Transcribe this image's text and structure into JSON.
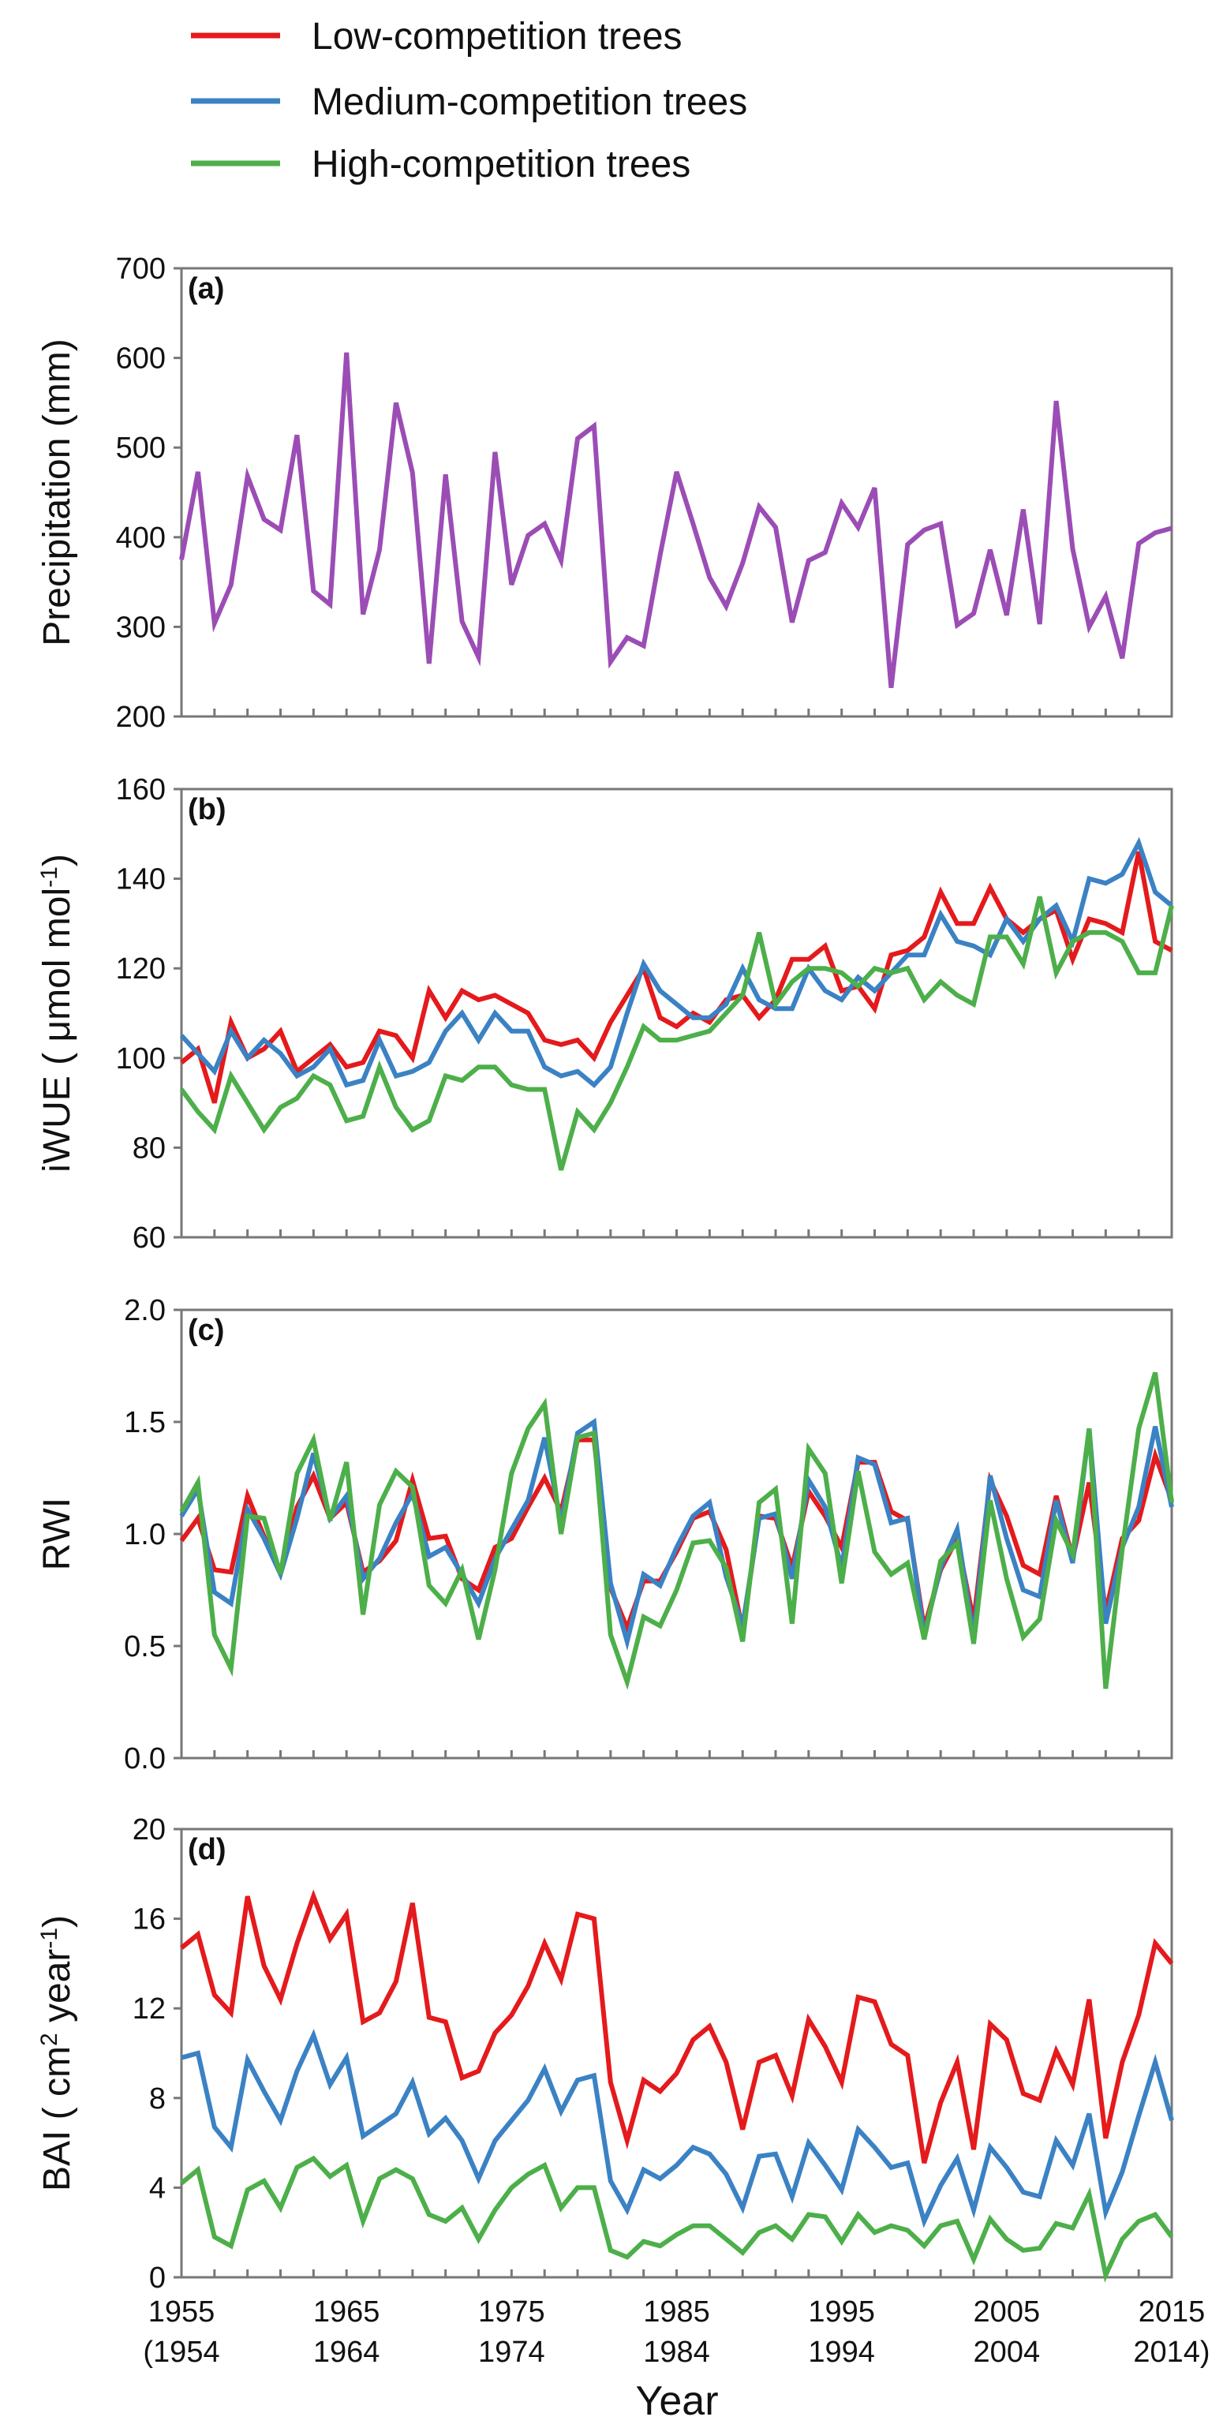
{
  "legend": [
    {
      "label": "Low-competition trees",
      "color": "#e41a1c"
    },
    {
      "label": "Medium-competition trees",
      "color": "#3b82c4"
    },
    {
      "label": "High-competition trees",
      "color": "#4daf4a"
    }
  ],
  "xaxis": {
    "title": "Year",
    "top_labels": [
      "1955",
      "1965",
      "1975",
      "1985",
      "1995",
      "2005",
      "2015"
    ],
    "bottom_labels": [
      "(1954",
      "1964",
      "1974",
      "1984",
      "1994",
      "2004",
      "2014)"
    ],
    "range": [
      1955,
      2015
    ]
  },
  "chart_data": [
    {
      "type": "line",
      "panel": "(a)",
      "ylabel": "Precipitation (mm)",
      "ylim": [
        200,
        700
      ],
      "yticks": [
        "200",
        "300",
        "400",
        "500",
        "600",
        "700"
      ],
      "x": [
        1955,
        1956,
        1957,
        1958,
        1959,
        1960,
        1961,
        1962,
        1963,
        1964,
        1965,
        1966,
        1967,
        1968,
        1969,
        1970,
        1971,
        1972,
        1973,
        1974,
        1975,
        1976,
        1977,
        1978,
        1979,
        1980,
        1981,
        1982,
        1983,
        1984,
        1985,
        1986,
        1987,
        1988,
        1989,
        1990,
        1991,
        1992,
        1993,
        1994,
        1995,
        1996,
        1997,
        1998,
        1999,
        2000,
        2001,
        2002,
        2003,
        2004,
        2005,
        2006,
        2007,
        2008,
        2009,
        2010,
        2011,
        2012,
        2013,
        2014,
        2015
      ],
      "series": [
        {
          "color": "#9b4db5",
          "values": [
            375,
            473,
            304,
            347,
            468,
            420,
            408,
            514,
            340,
            325,
            606,
            314,
            386,
            550,
            472,
            259,
            470,
            306,
            266,
            495,
            347,
            402,
            415,
            374,
            510,
            524,
            261,
            288,
            279,
            380,
            473,
            415,
            355,
            323,
            371,
            434,
            411,
            305,
            374,
            383,
            438,
            411,
            455,
            232,
            392,
            408,
            415,
            302,
            315,
            386,
            313,
            431,
            303,
            552,
            387,
            300,
            334,
            265,
            393,
            405,
            410
          ]
        }
      ]
    },
    {
      "type": "line",
      "panel": "(b)",
      "ylabel": "iWUE ( μmol mol",
      "ylabel_sup": "-1",
      "ylabel_end": ")",
      "ylim": [
        60,
        160
      ],
      "yticks": [
        "60",
        "80",
        "100",
        "120",
        "140",
        "160"
      ],
      "x": [
        1955,
        1956,
        1957,
        1958,
        1959,
        1960,
        1961,
        1962,
        1963,
        1964,
        1965,
        1966,
        1967,
        1968,
        1969,
        1970,
        1971,
        1972,
        1973,
        1974,
        1975,
        1976,
        1977,
        1978,
        1979,
        1980,
        1981,
        1982,
        1983,
        1984,
        1985,
        1986,
        1987,
        1988,
        1989,
        1990,
        1991,
        1992,
        1993,
        1994,
        1995,
        1996,
        1997,
        1998,
        1999,
        2000,
        2001,
        2002,
        2003,
        2004,
        2005,
        2006,
        2007,
        2008,
        2009,
        2010,
        2011,
        2012,
        2013,
        2014,
        2015
      ],
      "series": [
        {
          "name": "Low-competition trees",
          "color": "#e41a1c",
          "values": [
            99,
            102,
            90,
            108,
            100,
            102,
            106,
            97,
            100,
            103,
            98,
            99,
            106,
            105,
            100,
            115,
            109,
            115,
            113,
            114,
            112,
            110,
            104,
            103,
            104,
            100,
            108,
            114,
            120,
            109,
            107,
            110,
            108,
            113,
            114,
            109,
            113,
            122,
            122,
            125,
            115,
            116,
            111,
            123,
            124,
            127,
            137,
            130,
            130,
            138,
            131,
            128,
            131,
            133,
            122,
            131,
            130,
            128,
            146,
            126,
            124
          ]
        },
        {
          "name": "Medium-competition trees",
          "color": "#3b82c4",
          "values": [
            105,
            101,
            97,
            106,
            100,
            104,
            101,
            96,
            98,
            102,
            94,
            95,
            104,
            96,
            97,
            99,
            106,
            110,
            104,
            110,
            106,
            106,
            98,
            96,
            97,
            94,
            98,
            110,
            121,
            115,
            112,
            109,
            109,
            112,
            120,
            113,
            111,
            111,
            120,
            115,
            113,
            118,
            115,
            119,
            123,
            123,
            132,
            126,
            125,
            123,
            131,
            126,
            131,
            134,
            126,
            140,
            139,
            141,
            148,
            137,
            134
          ]
        },
        {
          "name": "High-competition trees",
          "color": "#4daf4a",
          "values": [
            93,
            88,
            84,
            96,
            90,
            84,
            89,
            91,
            96,
            94,
            86,
            87,
            98,
            89,
            84,
            86,
            96,
            95,
            98,
            98,
            94,
            93,
            93,
            75,
            88,
            84,
            90,
            98,
            107,
            104,
            104,
            105,
            106,
            110,
            114,
            128,
            112,
            117,
            120,
            120,
            119,
            116,
            120,
            119,
            120,
            113,
            117,
            114,
            112,
            127,
            127,
            121,
            136,
            119,
            126,
            128,
            128,
            126,
            119,
            119,
            134
          ]
        }
      ]
    },
    {
      "type": "line",
      "panel": "(c)",
      "ylabel": "RWI",
      "ylim": [
        0.0,
        2.0
      ],
      "yticks": [
        "0.0",
        "0.5",
        "1.0",
        "1.5",
        "2.0"
      ],
      "x": [
        1955,
        1956,
        1957,
        1958,
        1959,
        1960,
        1961,
        1962,
        1963,
        1964,
        1965,
        1966,
        1967,
        1968,
        1969,
        1970,
        1971,
        1972,
        1973,
        1974,
        1975,
        1976,
        1977,
        1978,
        1979,
        1980,
        1981,
        1982,
        1983,
        1984,
        1985,
        1986,
        1987,
        1988,
        1989,
        1990,
        1991,
        1992,
        1993,
        1994,
        1995,
        1996,
        1997,
        1998,
        1999,
        2000,
        2001,
        2002,
        2003,
        2004,
        2005,
        2006,
        2007,
        2008,
        2009,
        2010,
        2011,
        2012,
        2013,
        2014,
        2015
      ],
      "series": [
        {
          "name": "Low-competition trees",
          "color": "#e41a1c",
          "values": [
            0.97,
            1.07,
            0.84,
            0.83,
            1.17,
            0.99,
            0.83,
            1.12,
            1.26,
            1.07,
            1.14,
            0.83,
            0.88,
            0.97,
            1.24,
            0.98,
            0.99,
            0.8,
            0.75,
            0.94,
            0.98,
            1.12,
            1.25,
            1.1,
            1.42,
            1.42,
            0.76,
            0.58,
            0.79,
            0.79,
            0.92,
            1.07,
            1.1,
            0.93,
            0.57,
            1.08,
            1.07,
            0.85,
            1.19,
            1.08,
            0.94,
            1.32,
            1.32,
            1.1,
            1.06,
            0.58,
            0.84,
            0.98,
            0.61,
            1.24,
            1.08,
            0.86,
            0.82,
            1.17,
            0.89,
            1.23,
            0.65,
            0.98,
            1.06,
            1.35,
            1.15
          ]
        },
        {
          "name": "Medium-competition trees",
          "color": "#3b82c4",
          "values": [
            1.08,
            1.2,
            0.74,
            0.69,
            1.11,
            0.98,
            0.82,
            1.07,
            1.36,
            1.07,
            1.17,
            0.8,
            0.89,
            1.05,
            1.18,
            0.9,
            0.94,
            0.82,
            0.69,
            0.89,
            1.02,
            1.15,
            1.43,
            1.05,
            1.45,
            1.5,
            0.78,
            0.52,
            0.82,
            0.77,
            0.94,
            1.08,
            1.14,
            0.81,
            0.59,
            1.07,
            1.09,
            0.8,
            1.24,
            1.12,
            0.85,
            1.34,
            1.31,
            1.05,
            1.07,
            0.55,
            0.85,
            1.02,
            0.54,
            1.26,
            0.98,
            0.75,
            0.72,
            1.15,
            0.87,
            1.47,
            0.6,
            0.94,
            1.12,
            1.48,
            1.12
          ]
        },
        {
          "name": "High-competition trees",
          "color": "#4daf4a",
          "values": [
            1.1,
            1.23,
            0.55,
            0.4,
            1.08,
            1.07,
            0.82,
            1.27,
            1.42,
            1.06,
            1.32,
            0.64,
            1.13,
            1.28,
            1.21,
            0.77,
            0.69,
            0.84,
            0.53,
            0.84,
            1.27,
            1.47,
            1.58,
            1.0,
            1.43,
            1.45,
            0.55,
            0.34,
            0.63,
            0.59,
            0.75,
            0.96,
            0.97,
            0.85,
            0.52,
            1.14,
            1.2,
            0.6,
            1.38,
            1.27,
            0.78,
            1.28,
            0.92,
            0.82,
            0.87,
            0.53,
            0.88,
            0.96,
            0.51,
            1.15,
            0.8,
            0.54,
            0.62,
            1.06,
            0.91,
            1.47,
            0.31,
            0.93,
            1.47,
            1.72,
            1.14
          ]
        }
      ]
    },
    {
      "type": "line",
      "panel": "(d)",
      "ylabel": "BAI ( cm",
      "ylabel_sup1": "2",
      "ylabel_mid": " year",
      "ylabel_sup2": "-1",
      "ylabel_end": ")",
      "ylim": [
        0,
        20
      ],
      "yticks": [
        "0",
        "4",
        "8",
        "12",
        "16",
        "20"
      ],
      "x": [
        1955,
        1956,
        1957,
        1958,
        1959,
        1960,
        1961,
        1962,
        1963,
        1964,
        1965,
        1966,
        1967,
        1968,
        1969,
        1970,
        1971,
        1972,
        1973,
        1974,
        1975,
        1976,
        1977,
        1978,
        1979,
        1980,
        1981,
        1982,
        1983,
        1984,
        1985,
        1986,
        1987,
        1988,
        1989,
        1990,
        1991,
        1992,
        1993,
        1994,
        1995,
        1996,
        1997,
        1998,
        1999,
        2000,
        2001,
        2002,
        2003,
        2004,
        2005,
        2006,
        2007,
        2008,
        2009,
        2010,
        2011,
        2012,
        2013,
        2014,
        2015
      ],
      "series": [
        {
          "name": "Low-competition trees",
          "color": "#e41a1c",
          "values": [
            14.7,
            15.3,
            12.6,
            11.8,
            17.0,
            13.9,
            12.4,
            14.9,
            17.0,
            15.1,
            16.2,
            11.4,
            11.8,
            13.2,
            16.7,
            11.6,
            11.4,
            8.9,
            9.2,
            10.9,
            11.7,
            13.0,
            14.9,
            13.3,
            16.2,
            16.0,
            8.7,
            6.1,
            8.8,
            8.3,
            9.1,
            10.6,
            11.2,
            9.6,
            6.6,
            9.6,
            9.9,
            8.1,
            11.5,
            10.3,
            8.7,
            12.5,
            12.3,
            10.4,
            9.9,
            5.1,
            7.8,
            9.6,
            5.7,
            11.3,
            10.6,
            8.2,
            7.9,
            10.1,
            8.6,
            12.4,
            6.2,
            9.6,
            11.7,
            14.9,
            14.0
          ]
        },
        {
          "name": "Medium-competition trees",
          "color": "#3b82c4",
          "values": [
            9.8,
            10.0,
            6.7,
            5.8,
            9.7,
            8.3,
            7.0,
            9.2,
            10.8,
            8.6,
            9.8,
            6.3,
            6.8,
            7.3,
            8.7,
            6.4,
            7.1,
            6.1,
            4.4,
            6.1,
            7.0,
            7.9,
            9.3,
            7.4,
            8.8,
            9.0,
            4.3,
            3.0,
            4.8,
            4.4,
            5.0,
            5.8,
            5.5,
            4.6,
            3.1,
            5.4,
            5.5,
            3.6,
            6.0,
            5.0,
            3.9,
            6.6,
            5.8,
            4.9,
            5.1,
            2.5,
            4.1,
            5.3,
            3.0,
            5.8,
            4.9,
            3.8,
            3.6,
            6.1,
            5.0,
            7.3,
            2.9,
            4.7,
            7.2,
            9.6,
            7.0
          ]
        },
        {
          "name": "High-competition trees",
          "color": "#4daf4a",
          "values": [
            4.2,
            4.8,
            1.8,
            1.4,
            3.9,
            4.3,
            3.1,
            4.9,
            5.3,
            4.5,
            5.0,
            2.5,
            4.4,
            4.8,
            4.4,
            2.8,
            2.5,
            3.1,
            1.7,
            3.0,
            4.0,
            4.6,
            5.0,
            3.1,
            4.0,
            4.0,
            1.2,
            0.9,
            1.6,
            1.4,
            1.9,
            2.3,
            2.3,
            1.7,
            1.1,
            2.0,
            2.3,
            1.7,
            2.8,
            2.7,
            1.6,
            2.8,
            2.0,
            2.3,
            2.1,
            1.4,
            2.3,
            2.5,
            0.8,
            2.6,
            1.7,
            1.2,
            1.3,
            2.4,
            2.2,
            3.7,
            0.1,
            1.7,
            2.5,
            2.8,
            1.8
          ]
        }
      ]
    }
  ]
}
